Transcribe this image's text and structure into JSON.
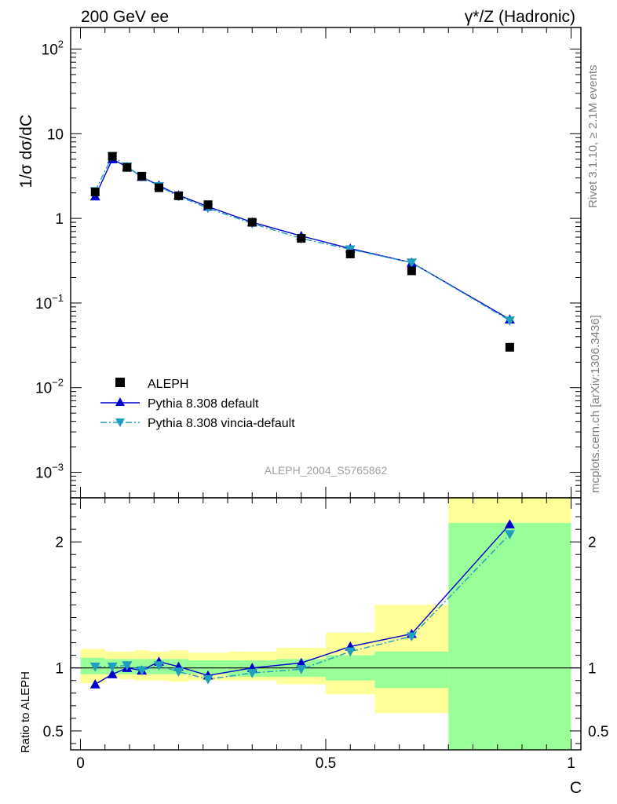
{
  "header": {
    "left_title": "200 GeV ee",
    "right_title": "γ*/Z (Hadronic)"
  },
  "side_labels": {
    "rivet": "Rivet 3.1.10, ≥ 2.1M events",
    "mcplots": "mcplots.cern.ch [arXiv:1306.3436]"
  },
  "analysis_id": "ALEPH_2004_S5765862",
  "chart_data": [
    {
      "type": "line",
      "panel": "main",
      "ylabel": "1/σ  dσ/dC",
      "yscale": "log",
      "ylim": [
        0.0005,
        180
      ],
      "xlim": [
        -0.02,
        1.02
      ],
      "y_tick_labels": [
        "10^-3",
        "10^-2",
        "10^-1",
        "1",
        "10",
        "10^2"
      ],
      "legend_position": "lower-left",
      "legend": [
        "ALEPH",
        "Pythia 8.308 default",
        "Pythia 8.308 vincia-default"
      ],
      "x": [
        0.03,
        0.065,
        0.095,
        0.125,
        0.16,
        0.2,
        0.26,
        0.35,
        0.45,
        0.55,
        0.675,
        0.875
      ],
      "series": [
        {
          "name": "ALEPH",
          "style": "square-marker",
          "color": "#000000",
          "values": [
            2.05,
            5.4,
            4.0,
            3.15,
            2.3,
            1.85,
            1.45,
            0.9,
            0.58,
            0.38,
            0.24,
            0.03
          ]
        },
        {
          "name": "Pythia 8.308 default",
          "style": "solid-line-up-triangle",
          "color": "#0000cc",
          "values": [
            1.82,
            5.0,
            4.05,
            3.1,
            2.45,
            1.88,
            1.38,
            0.9,
            0.62,
            0.44,
            0.3,
            0.064
          ]
        },
        {
          "name": "Pythia 8.308 vincia-default",
          "style": "dashdot-line-down-triangle",
          "color": "#1e9fbf",
          "values": [
            2.1,
            5.45,
            4.1,
            3.1,
            2.4,
            1.82,
            1.32,
            0.87,
            0.58,
            0.43,
            0.3,
            0.062
          ]
        }
      ]
    },
    {
      "type": "line",
      "panel": "ratio",
      "ylabel": "Ratio to ALEPH",
      "xlabel": "C",
      "ylim": [
        0.35,
        2.35
      ],
      "xlim": [
        -0.02,
        1.02
      ],
      "x_tick_labels": [
        "0",
        "0.5",
        "1"
      ],
      "y_tick_labels": [
        "0.5",
        "1",
        "2"
      ],
      "reference_line": 1,
      "bins": [
        [
          0.0,
          0.05
        ],
        [
          0.05,
          0.08
        ],
        [
          0.08,
          0.11
        ],
        [
          0.11,
          0.14
        ],
        [
          0.14,
          0.18
        ],
        [
          0.18,
          0.22
        ],
        [
          0.22,
          0.3
        ],
        [
          0.3,
          0.4
        ],
        [
          0.4,
          0.5
        ],
        [
          0.5,
          0.6
        ],
        [
          0.6,
          0.75
        ],
        [
          0.75,
          1.0
        ]
      ],
      "uncertainty_bands": [
        {
          "name": "stat",
          "color": "#99ff99",
          "low": [
            0.95,
            0.95,
            0.95,
            0.95,
            0.95,
            0.95,
            0.95,
            0.93,
            0.93,
            0.9,
            0.84,
            0.2
          ],
          "high": [
            1.08,
            1.07,
            1.07,
            1.07,
            1.07,
            1.07,
            1.06,
            1.06,
            1.07,
            1.1,
            1.13,
            2.15
          ]
        },
        {
          "name": "total",
          "color": "#ffff99",
          "low": [
            0.88,
            0.92,
            0.91,
            0.9,
            0.9,
            0.89,
            0.9,
            0.9,
            0.87,
            0.79,
            0.64,
            0.2
          ],
          "high": [
            1.15,
            1.13,
            1.13,
            1.14,
            1.13,
            1.14,
            1.12,
            1.13,
            1.16,
            1.28,
            1.5,
            2.35
          ]
        }
      ],
      "series": [
        {
          "name": "Pythia 8.308 default",
          "color": "#0000cc",
          "values": [
            0.87,
            0.95,
            1.0,
            0.98,
            1.05,
            1.01,
            0.94,
            1.0,
            1.04,
            1.17,
            1.27,
            2.14
          ]
        },
        {
          "name": "Pythia 8.308 vincia-default",
          "color": "#1e9fbf",
          "values": [
            1.01,
            1.01,
            1.02,
            0.98,
            1.02,
            0.97,
            0.91,
            0.96,
            0.99,
            1.13,
            1.25,
            2.06
          ]
        }
      ]
    }
  ]
}
